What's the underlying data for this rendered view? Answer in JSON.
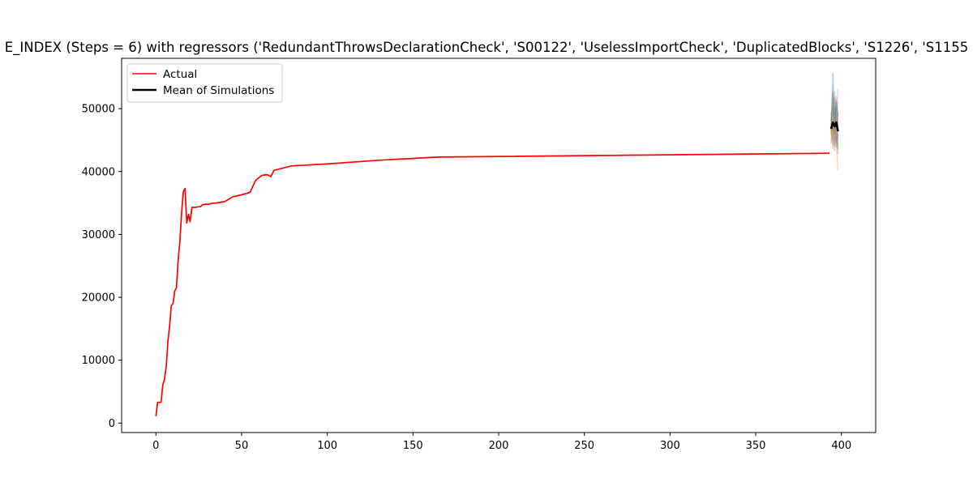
{
  "chart_data": {
    "type": "line",
    "title": "E_INDEX (Steps = 6) with regressors ('RedundantThrowsDeclarationCheck', 'S00122', 'UselessImportCheck', 'DuplicatedBlocks', 'S1226', 'S1155",
    "xlabel": "",
    "ylabel": "",
    "xlim": [
      -20,
      420
    ],
    "ylim": [
      -1500,
      58000
    ],
    "xticks": [
      0,
      50,
      100,
      150,
      200,
      250,
      300,
      350,
      400
    ],
    "yticks": [
      0,
      10000,
      20000,
      30000,
      40000,
      50000
    ],
    "grid": false,
    "legend_position": "upper left",
    "legend": [
      "Actual",
      "Mean of Simulations"
    ],
    "colors": {
      "actual": "#ff0000",
      "mean": "#000000"
    },
    "series": [
      {
        "name": "Actual",
        "color": "#ff0000",
        "x": [
          0,
          1,
          2,
          3,
          4,
          5,
          6,
          7,
          8,
          9,
          10,
          11,
          12,
          13,
          14,
          15,
          16,
          17,
          18,
          19,
          20,
          21,
          22,
          23,
          24,
          25,
          26,
          27,
          28,
          29,
          30,
          31,
          32,
          33,
          35,
          40,
          45,
          47,
          50,
          55,
          58,
          59,
          60,
          62,
          65,
          67,
          69,
          75,
          79,
          100,
          130,
          165,
          393
        ],
        "values": [
          1100,
          3300,
          3300,
          3300,
          6000,
          7000,
          9000,
          13000,
          15500,
          18700,
          19000,
          21000,
          21500,
          26000,
          29000,
          33500,
          36800,
          37300,
          31800,
          33200,
          32000,
          34300,
          34300,
          34300,
          34350,
          34400,
          34400,
          34700,
          34750,
          34800,
          34800,
          34800,
          34900,
          34950,
          35000,
          35200,
          36000,
          36100,
          36300,
          36700,
          38500,
          38800,
          39000,
          39400,
          39500,
          39200,
          40200,
          40600,
          40900,
          41200,
          41800,
          42300,
          42900
        ]
      },
      {
        "name": "Mean of Simulations",
        "color": "#000000",
        "x": [
          394,
          395,
          396,
          397,
          398
        ],
        "values": [
          46800,
          47800,
          47200,
          47800,
          46400
        ]
      }
    ],
    "simulations": {
      "x": [
        394,
        395,
        396,
        397,
        398
      ],
      "colors": [
        "#1f77b4",
        "#ff7f0e",
        "#2ca02c",
        "#d62728",
        "#9467bd",
        "#8c564b",
        "#e377c2",
        "#7f7f7f",
        "#bcbd22",
        "#17becf"
      ],
      "runs": [
        [
          46500,
          55700,
          44000,
          49000,
          45000
        ],
        [
          47500,
          53000,
          49000,
          51500,
          46800
        ],
        [
          45800,
          50500,
          46500,
          45500,
          42800
        ],
        [
          48500,
          46500,
          51800,
          44500,
          49500
        ],
        [
          44500,
          48000,
          43200,
          52000,
          47200
        ],
        [
          49500,
          45000,
          47800,
          50200,
          43500
        ],
        [
          46200,
          51500,
          44800,
          47000,
          53200
        ],
        [
          47800,
          44200,
          50200,
          43800,
          46000
        ],
        [
          45200,
          49800,
          45500,
          48500,
          51000
        ],
        [
          48200,
          47200,
          52800,
          46500,
          44200
        ],
        [
          46900,
          52500,
          46000,
          51000,
          48800
        ],
        [
          47100,
          43600,
          48800,
          44800,
          40200
        ]
      ]
    }
  }
}
